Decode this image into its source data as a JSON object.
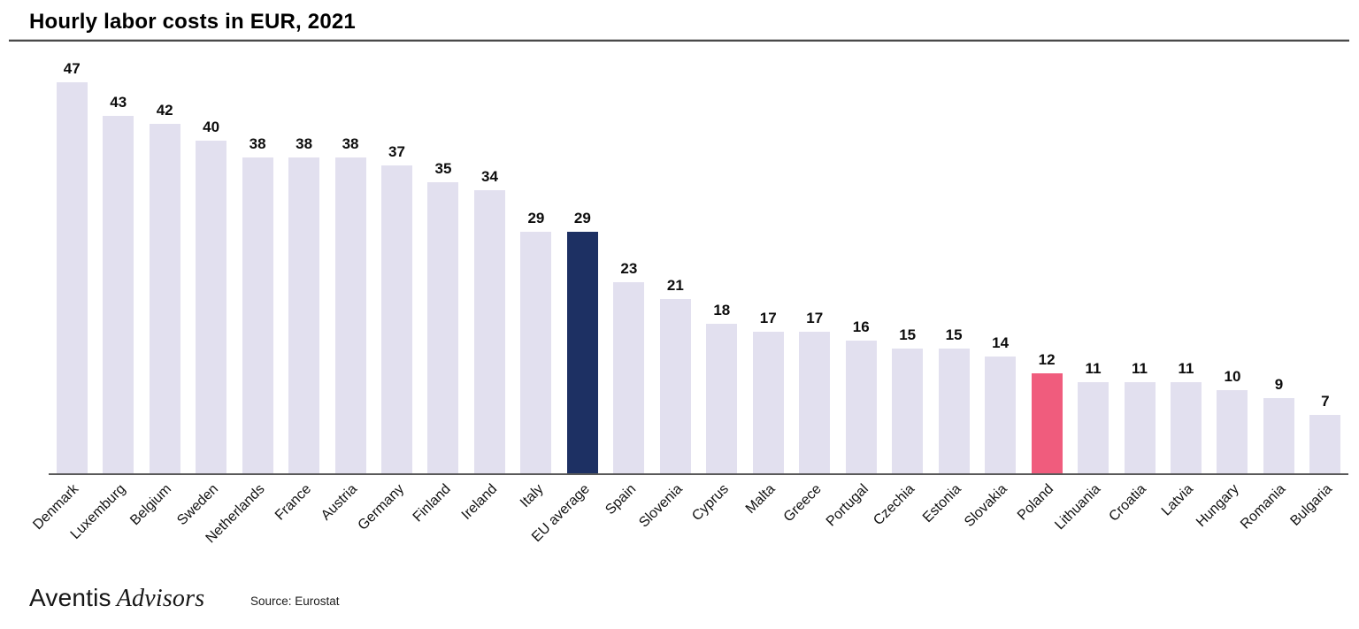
{
  "title": "Hourly labor costs in EUR, 2021",
  "footer": {
    "logo_primary": "Aventis",
    "logo_secondary": "Advisors",
    "source": "Source: Eurostat"
  },
  "colors": {
    "bar_default": "#E2E0EF",
    "bar_eu_average": "#1D3063",
    "bar_poland": "#F05C7D",
    "axis_line": "#5a5a5a"
  },
  "chart_data": {
    "type": "bar",
    "title": "Hourly labor costs in EUR, 2021",
    "xlabel": "",
    "ylabel": "",
    "ylim": [
      0,
      50
    ],
    "grid": false,
    "legend": false,
    "value_labels": true,
    "x_tick_rotation_deg": 45,
    "categories": [
      "Denmark",
      "Luxemburg",
      "Belgium",
      "Sweden",
      "Netherlands",
      "France",
      "Austria",
      "Germany",
      "Finland",
      "Ireland",
      "Italy",
      "EU average",
      "Spain",
      "Slovenia",
      "Cyprus",
      "Malta",
      "Greece",
      "Portugal",
      "Czechia",
      "Estonia",
      "Slovakia",
      "Poland",
      "Lithuania",
      "Croatia",
      "Latvia",
      "Hungary",
      "Romania",
      "Bulgaria"
    ],
    "values": [
      47,
      43,
      42,
      40,
      38,
      38,
      38,
      37,
      35,
      34,
      29,
      29,
      23,
      21,
      18,
      17,
      17,
      16,
      15,
      15,
      14,
      12,
      11,
      11,
      11,
      10,
      9,
      7
    ],
    "highlighted_bars": [
      {
        "category": "EU average",
        "color": "#1D3063"
      },
      {
        "category": "Poland",
        "color": "#F05C7D"
      }
    ]
  }
}
